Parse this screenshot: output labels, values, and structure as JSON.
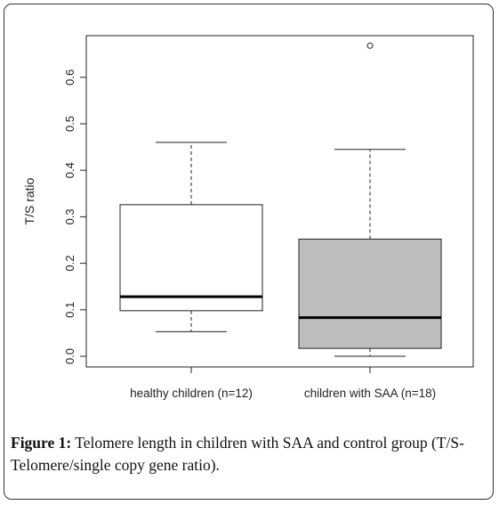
{
  "chart_data": {
    "type": "boxplot",
    "ylabel": "T/S ratio",
    "xlabel": "",
    "ylim": [
      0,
      0.65
    ],
    "yticks": [
      0.0,
      0.1,
      0.2,
      0.3,
      0.4,
      0.5,
      0.6
    ],
    "ytick_labels": [
      "0.0",
      "0.1",
      "0.2",
      "0.3",
      "0.4",
      "0.5",
      "0.6"
    ],
    "categories": [
      "healthy children (n=12)",
      "children with SAA (n=18)"
    ],
    "boxes": [
      {
        "category": "healthy children (n=12)",
        "whisker_low": 0.053,
        "q1": 0.098,
        "median": 0.128,
        "q3": 0.326,
        "whisker_high": 0.46,
        "outliers": [],
        "fill": "#ffffff"
      },
      {
        "category": "children with SAA (n=18)",
        "whisker_low": 0.0,
        "q1": 0.017,
        "median": 0.083,
        "q3": 0.252,
        "whisker_high": 0.445,
        "outliers": [
          0.668
        ],
        "fill": "#bebebe"
      }
    ],
    "grid": false,
    "legend": "none"
  },
  "caption": {
    "label": "Figure 1:",
    "text": " Telomere length in children with SAA and control group (T/S-Telomere/single copy gene ratio)."
  }
}
